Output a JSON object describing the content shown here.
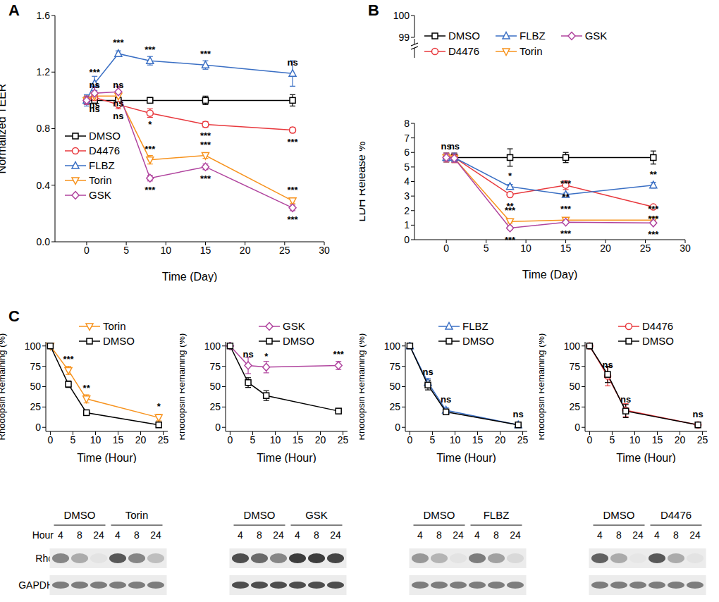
{
  "chart_data": [
    {
      "type": "line",
      "title": "A",
      "xlabel": "Time (Day)",
      "ylabel": "Normalized TEER",
      "x": [
        0,
        1,
        4,
        8,
        15,
        26
      ],
      "xlim": [
        -4,
        30
      ],
      "xticks": [
        0,
        5,
        10,
        15,
        20,
        25,
        30
      ],
      "ylim": [
        0,
        1.6
      ],
      "yticks": [
        {
          "value": 0,
          "label": "0.0"
        },
        0.4,
        0.8,
        1.2,
        1.6
      ],
      "legend": "lower left",
      "series": [
        {
          "name": "DMSO",
          "color": "#000000",
          "marker": "square",
          "values": [
            1,
            1,
            1,
            1,
            1,
            1
          ],
          "error": [
            0.03,
            0.02,
            0.02,
            0.02,
            0.03,
            0.04
          ],
          "annotations": [
            null,
            null,
            null,
            null,
            null,
            null
          ]
        },
        {
          "name": "D4476",
          "color": "#e8383d",
          "marker": "circle",
          "values": [
            1.0,
            1.02,
            0.97,
            0.91,
            0.83,
            0.79
          ],
          "error": [
            0.03,
            0.03,
            0.03,
            0.03,
            0.02,
            0.02
          ],
          "annotations": [
            null,
            "ns",
            "ns",
            "*",
            "***",
            "***"
          ]
        },
        {
          "name": "FLBZ",
          "color": "#3a6fc4",
          "marker": "triangle",
          "values": [
            1.0,
            1.12,
            1.33,
            1.28,
            1.25,
            1.19
          ],
          "error": [
            0.04,
            0.05,
            0.02,
            0.03,
            0.03,
            0.09
          ],
          "annotations": [
            null,
            "***",
            "***",
            "***",
            "***",
            "ns"
          ]
        },
        {
          "name": "Torin",
          "color": "#f7931e",
          "marker": "triangle-down",
          "values": [
            1.0,
            1.03,
            1.03,
            0.58,
            0.61,
            0.29
          ],
          "error": [
            0.03,
            0.03,
            0.03,
            0.03,
            0.02,
            0.02
          ],
          "annotations": [
            null,
            "ns",
            "ns",
            "***",
            "***",
            "***"
          ]
        },
        {
          "name": "GSK",
          "color": "#b0449e",
          "marker": "diamond",
          "values": [
            1.0,
            1.05,
            1.06,
            0.45,
            0.53,
            0.24
          ],
          "error": [
            0.03,
            0.04,
            0.04,
            0.02,
            0.02,
            0.02
          ],
          "annotations": [
            null,
            "ns",
            "ns",
            "***",
            "***",
            "***"
          ]
        }
      ]
    },
    {
      "type": "line",
      "title": "B",
      "xlim": [
        -4,
        30
      ],
      "ylim": [
        99,
        100
      ],
      "yticks": [
        99,
        100
      ],
      "tick_labels": "y",
      "series": []
    },
    {
      "type": "line",
      "xlabel": "Time (Day)",
      "ylabel": "LDH Release %",
      "x": [
        0,
        1,
        8,
        15,
        26
      ],
      "xlim": [
        -4,
        30
      ],
      "xticks": [
        0,
        5,
        10,
        15,
        20,
        25,
        30
      ],
      "ylim": [
        0,
        8
      ],
      "yticks": [
        0,
        1,
        2,
        3,
        4,
        5,
        6,
        7,
        8
      ],
      "legend": "upper left",
      "series": [
        {
          "name": "DMSO",
          "color": "#000000",
          "marker": "square",
          "values": [
            5.65,
            5.65,
            5.65,
            5.65,
            5.65
          ],
          "error": [
            0.3,
            0.3,
            0.6,
            0.35,
            0.45
          ],
          "annotations": [
            "ns",
            "ns",
            null,
            null,
            null
          ]
        },
        {
          "name": "D4476",
          "color": "#e8383d",
          "marker": "circle",
          "values": [
            5.65,
            5.65,
            3.1,
            3.75,
            2.25
          ],
          "error": [
            0.3,
            0.3,
            0.15,
            0.3,
            0.1
          ],
          "annotations": [
            null,
            null,
            "**",
            "**",
            "***"
          ]
        },
        {
          "name": "FLBZ",
          "color": "#3a6fc4",
          "marker": "triangle",
          "values": [
            5.65,
            5.65,
            3.65,
            3.1,
            3.75
          ],
          "error": [
            0.3,
            0.3,
            0.15,
            0.1,
            0.2
          ],
          "annotations": [
            null,
            null,
            "*",
            "***",
            "**"
          ]
        },
        {
          "name": "Torin",
          "color": "#f7931e",
          "marker": "triangle-down",
          "values": [
            5.65,
            5.6,
            1.25,
            1.35,
            1.35
          ],
          "error": [
            0.3,
            0.3,
            0.1,
            0.1,
            0.1
          ],
          "annotations": [
            null,
            null,
            "***",
            "***",
            "***"
          ]
        },
        {
          "name": "GSK",
          "color": "#b0449e",
          "marker": "diamond",
          "values": [
            5.65,
            5.6,
            0.8,
            1.2,
            1.15
          ],
          "error": [
            0.3,
            0.3,
            0.1,
            0.1,
            0.1
          ],
          "annotations": [
            null,
            null,
            "***",
            "***",
            "***"
          ]
        }
      ]
    },
    {
      "type": "line",
      "title": "C",
      "xlabel": "Time (Hour)",
      "ylabel": "Rhodopsin Remaining (%)",
      "x": [
        0,
        4,
        8,
        24
      ],
      "xlim": [
        -1,
        26
      ],
      "xticks": [
        0,
        5,
        10,
        15,
        20,
        25
      ],
      "ylim": [
        -5,
        105
      ],
      "yticks": [
        0,
        25,
        50,
        75,
        100
      ],
      "legend": "upper right",
      "series": [
        {
          "name": "Torin",
          "color": "#f7931e",
          "marker": "triangle-down",
          "values": [
            100,
            70,
            35,
            12
          ],
          "error": [
            0,
            5,
            5,
            4
          ],
          "annotations": [
            null,
            "***",
            "**",
            "*"
          ]
        },
        {
          "name": "DMSO",
          "color": "#000000",
          "marker": "square",
          "values": [
            100,
            53,
            18,
            3
          ],
          "error": [
            0,
            4,
            2,
            1
          ]
        }
      ]
    },
    {
      "type": "line",
      "xlabel": "Time (Hour)",
      "ylabel": "Rhodopsin Remaining (%)",
      "x": [
        0,
        4,
        8,
        24
      ],
      "xlim": [
        -1,
        26
      ],
      "xticks": [
        0,
        5,
        10,
        15,
        20,
        25
      ],
      "ylim": [
        -5,
        105
      ],
      "yticks": [
        0,
        25,
        50,
        75,
        100
      ],
      "legend": "upper right",
      "series": [
        {
          "name": "GSK",
          "color": "#b0449e",
          "marker": "diamond",
          "values": [
            100,
            76,
            74,
            76
          ],
          "error": [
            0,
            10,
            7,
            5
          ],
          "annotations": [
            null,
            "ns",
            "*",
            "***"
          ]
        },
        {
          "name": "DMSO",
          "color": "#000000",
          "marker": "square",
          "values": [
            100,
            55,
            39,
            20
          ],
          "error": [
            0,
            6,
            6,
            3
          ]
        }
      ]
    },
    {
      "type": "line",
      "xlabel": "Time (Hour)",
      "ylabel": "Rhodopsin Remaining (%)",
      "x": [
        0,
        4,
        8,
        24
      ],
      "xlim": [
        -1,
        26
      ],
      "xticks": [
        0,
        5,
        10,
        15,
        20,
        25
      ],
      "ylim": [
        -5,
        105
      ],
      "yticks": [
        0,
        25,
        50,
        75,
        100
      ],
      "legend": "upper right",
      "series": [
        {
          "name": "FLBZ",
          "color": "#3a6fc4",
          "marker": "triangle",
          "values": [
            100,
            55,
            21,
            3
          ],
          "error": [
            0,
            5,
            3,
            1
          ],
          "annotations": [
            null,
            "ns",
            "ns",
            "ns"
          ]
        },
        {
          "name": "DMSO",
          "color": "#000000",
          "marker": "square",
          "values": [
            100,
            52,
            19,
            3
          ],
          "error": [
            0,
            6,
            2,
            1
          ]
        }
      ]
    },
    {
      "type": "line",
      "xlabel": "Time (Hour)",
      "ylabel": "Rhodopsin Remaining (%)",
      "x": [
        0,
        4,
        8,
        24
      ],
      "xlim": [
        -1,
        26
      ],
      "xticks": [
        0,
        5,
        10,
        15,
        20,
        25
      ],
      "ylim": [
        -5,
        105
      ],
      "yticks": [
        0,
        25,
        50,
        75,
        100
      ],
      "legend": "upper right",
      "series": [
        {
          "name": "D4476",
          "color": "#e8383d",
          "marker": "circle",
          "values": [
            100,
            63,
            21,
            3
          ],
          "error": [
            0,
            12,
            8,
            2
          ],
          "annotations": [
            null,
            "ns",
            "ns",
            "ns"
          ]
        },
        {
          "name": "DMSO",
          "color": "#000000",
          "marker": "square",
          "values": [
            100,
            65,
            20,
            3
          ],
          "error": [
            0,
            10,
            8,
            1
          ]
        }
      ]
    }
  ],
  "blots": {
    "header": "Hour",
    "rows": [
      "Rho",
      "GAPDH"
    ],
    "panels": [
      {
        "groups": [
          "DMSO",
          "Torin"
        ],
        "hours": [
          4,
          8,
          24
        ],
        "intensity": [
          [
            0.55,
            0.35,
            0.05,
            0.8,
            0.55,
            0.25
          ],
          [
            0.6,
            0.6,
            0.6,
            0.6,
            0.6,
            0.6
          ]
        ]
      },
      {
        "groups": [
          "DMSO",
          "GSK"
        ],
        "hours": [
          4,
          8,
          24
        ],
        "intensity": [
          [
            0.85,
            0.7,
            0.55,
            0.95,
            0.95,
            0.9
          ],
          [
            0.85,
            0.85,
            0.85,
            0.85,
            0.85,
            0.85
          ]
        ]
      },
      {
        "groups": [
          "DMSO",
          "FLBZ"
        ],
        "hours": [
          4,
          8,
          24
        ],
        "intensity": [
          [
            0.45,
            0.3,
            0.05,
            0.6,
            0.4,
            0.1
          ],
          [
            0.6,
            0.6,
            0.6,
            0.6,
            0.6,
            0.6
          ]
        ]
      },
      {
        "groups": [
          "DMSO",
          "D4476"
        ],
        "hours": [
          4,
          8,
          24
        ],
        "intensity": [
          [
            0.75,
            0.35,
            0.03,
            0.8,
            0.35,
            0.05
          ],
          [
            0.6,
            0.6,
            0.6,
            0.6,
            0.6,
            0.6
          ]
        ]
      }
    ]
  }
}
